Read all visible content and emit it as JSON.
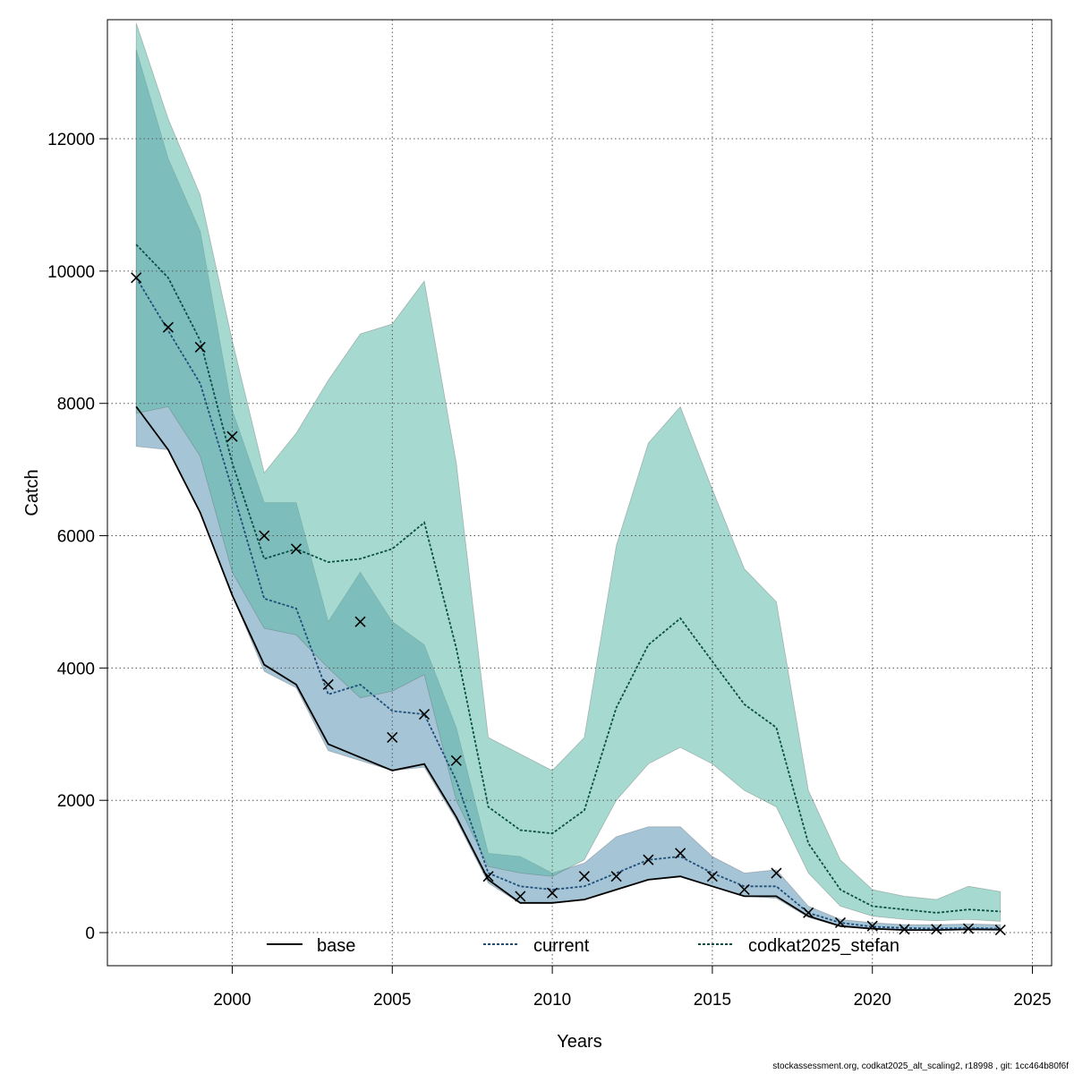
{
  "chart_data": {
    "type": "line",
    "title": "",
    "xlabel": "Years",
    "ylabel": "Catch",
    "xlim": [
      1996.1,
      2025.6
    ],
    "ylim": [
      -500,
      13800
    ],
    "xticks": [
      2000,
      2005,
      2010,
      2015,
      2020,
      2025
    ],
    "yticks": [
      0,
      2000,
      4000,
      6000,
      8000,
      10000,
      12000
    ],
    "grid": true,
    "legend_position": "bottom",
    "x": [
      1997,
      1998,
      1999,
      2000,
      2001,
      2002,
      2003,
      2004,
      2005,
      2006,
      2007,
      2008,
      2009,
      2010,
      2011,
      2012,
      2013,
      2014,
      2015,
      2016,
      2017,
      2018,
      2019,
      2020,
      2021,
      2022,
      2023,
      2024
    ],
    "series": [
      {
        "name": "base",
        "line_style": "solid",
        "color": "#000000",
        "values": [
          7950,
          7300,
          6350,
          5100,
          4050,
          3750,
          2850,
          2650,
          2450,
          2550,
          1750,
          800,
          450,
          450,
          500,
          650,
          800,
          850,
          700,
          550,
          550,
          250,
          100,
          60,
          40,
          40,
          50,
          45
        ],
        "lower": [
          7350,
          7300,
          6350,
          5100,
          3950,
          3700,
          2750,
          2600,
          2450,
          2500,
          1700,
          750,
          440,
          440,
          500,
          650,
          800,
          850,
          700,
          550,
          520,
          230,
          90,
          50,
          35,
          35,
          40,
          35
        ],
        "upper": [
          13350,
          11700,
          10600,
          7900,
          6500,
          6500,
          4700,
          5450,
          4700,
          4350,
          3100,
          1200,
          1150,
          900,
          1050,
          1450,
          1600,
          1600,
          1150,
          900,
          950,
          400,
          200,
          150,
          120,
          120,
          130,
          120
        ],
        "band_color": "#5b93b4"
      },
      {
        "name": "current",
        "line_style": "dotted",
        "color": "#1f4e79",
        "values": [
          9900,
          9100,
          8300,
          6700,
          5050,
          4900,
          3600,
          3750,
          3350,
          3300,
          2300,
          900,
          700,
          650,
          700,
          900,
          1100,
          1150,
          900,
          700,
          700,
          300,
          150,
          90,
          70,
          60,
          70,
          60
        ],
        "lower": [
          7350,
          7300,
          6350,
          5100,
          3950,
          3700,
          2750,
          2600,
          2450,
          2500,
          1700,
          750,
          440,
          440,
          500,
          650,
          800,
          850,
          700,
          550,
          520,
          230,
          90,
          50,
          35,
          35,
          40,
          35
        ],
        "upper": [
          13350,
          11700,
          10600,
          7900,
          6500,
          6500,
          4700,
          5450,
          4700,
          4350,
          3100,
          1200,
          1150,
          900,
          1050,
          1450,
          1600,
          1600,
          1150,
          900,
          950,
          400,
          200,
          150,
          120,
          120,
          130,
          120
        ],
        "band_color": "#5b93b4"
      },
      {
        "name": "codkat2025_stefan",
        "line_style": "dotted",
        "color": "#0a4f45",
        "values": [
          10400,
          9900,
          8950,
          7100,
          5650,
          5800,
          5600,
          5650,
          5800,
          6200,
          4300,
          1900,
          1550,
          1500,
          1850,
          3400,
          4350,
          4750,
          4100,
          3450,
          3100,
          1350,
          650,
          400,
          350,
          300,
          350,
          320
        ],
        "lower": [
          7850,
          7950,
          7200,
          5450,
          4600,
          4500,
          4000,
          3550,
          3650,
          3900,
          2000,
          1000,
          900,
          850,
          1100,
          2000,
          2550,
          2800,
          2550,
          2150,
          1900,
          900,
          400,
          250,
          200,
          180,
          200,
          170
        ],
        "upper": [
          13750,
          12300,
          11150,
          8950,
          6950,
          7550,
          8350,
          9050,
          9200,
          9850,
          7100,
          2950,
          2700,
          2450,
          2950,
          5850,
          7400,
          7950,
          6700,
          5500,
          5000,
          2150,
          1100,
          650,
          550,
          500,
          700,
          620
        ],
        "band_color": "#5dbaa8"
      }
    ],
    "observations": {
      "marker": "x",
      "values": [
        9900,
        9150,
        8850,
        7500,
        6000,
        5800,
        3750,
        4700,
        2950,
        3300,
        2600,
        850,
        550,
        600,
        850,
        850,
        1100,
        1200,
        850,
        650,
        900,
        300,
        150,
        100,
        50,
        50,
        60,
        40
      ]
    }
  },
  "footer": "stockassessment.org, codkat2025_alt_scaling2, r18998 , git: 1cc464b80f6f"
}
